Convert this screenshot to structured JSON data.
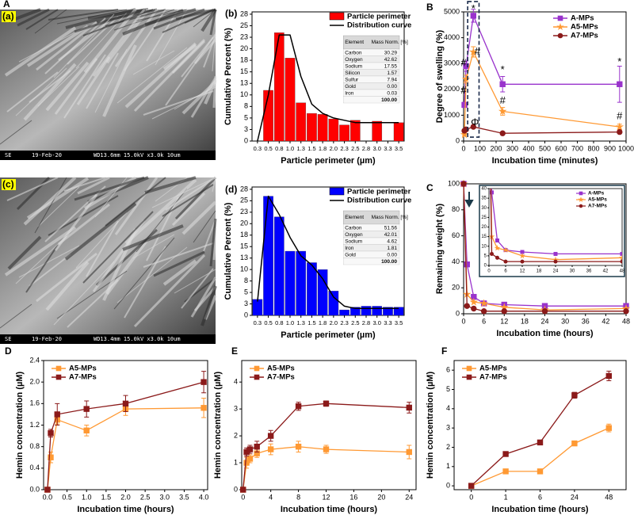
{
  "chart_data": [
    {
      "type": "image",
      "panel_label": "A",
      "label": "(a)",
      "footer": [
        "SE",
        "19-Feb-20",
        "WD13.6mm 15.0kV x3.0k 10um"
      ]
    },
    {
      "type": "bar",
      "panel_label": "(b)",
      "xlabel": "Particle perimeter (µm)",
      "ylabel": "Cumulative Percent (%)",
      "categories": [
        "0.3",
        "0.5",
        "0.8",
        "1.0",
        "1.3",
        "1.5",
        "1.8",
        "2.0",
        "2.3",
        "2.5",
        "2.8",
        "3.0",
        "3.3",
        "3.5"
      ],
      "ylim": [
        0,
        28
      ],
      "yticks": [
        0,
        {
          "value": 2.5,
          "label": "3"
        },
        5,
        {
          "value": 7.5,
          "label": "8"
        },
        10,
        {
          "value": 12.5,
          "label": "13"
        },
        15,
        {
          "value": 17.5,
          "label": "18"
        },
        20,
        {
          "value": 22.5,
          "label": "23"
        },
        25,
        {
          "value": 27.5,
          "label": "28"
        }
      ],
      "legend": "upper right",
      "series": [
        {
          "name": "Particle perimeter",
          "kind": "bar",
          "color": "#ff0000",
          "values": [
            null,
            11,
            23.5,
            18,
            8.3,
            6,
            5.8,
            4.8,
            3.5,
            4.5,
            null,
            4.3,
            null,
            4
          ]
        },
        {
          "name": "Distribution curve",
          "kind": "line",
          "color": "#000000",
          "values": [
            0,
            10,
            23,
            23,
            14,
            8,
            6,
            5,
            4.5,
            4,
            4,
            4,
            4,
            4
          ]
        }
      ],
      "table": {
        "header": [
          "Element",
          "Mass Norm. [%]"
        ],
        "rows": [
          [
            "Carbon",
            "30.29"
          ],
          [
            "Oxygen",
            "42.62"
          ],
          [
            "Sodium",
            "17.55"
          ],
          [
            "Silicon",
            "1.57"
          ],
          [
            "Sulfur",
            "7.94"
          ],
          [
            "Gold",
            "0.00"
          ],
          [
            "Iron",
            "0.03"
          ]
        ],
        "total": "100.00"
      }
    },
    {
      "type": "line",
      "panel_label": "B",
      "xlabel": "Incubation time (minutes)",
      "ylabel": "Degree of swelling (%)",
      "x": [
        5,
        15,
        60,
        240,
        960
      ],
      "xlim": [
        0,
        1000
      ],
      "xticks": [
        0,
        100,
        200,
        300,
        400,
        500,
        600,
        700,
        800,
        900,
        1000
      ],
      "ylim": [
        0,
        5000
      ],
      "yticks": [
        0,
        1000,
        2000,
        3000,
        4000,
        5000
      ],
      "legend": "upper right",
      "series": [
        {
          "name": "A-MPs",
          "color": "#9933cc",
          "marker": "square",
          "values": [
            1400,
            2900,
            4850,
            2200,
            2200
          ],
          "errors": [
            100,
            200,
            250,
            300,
            700
          ]
        },
        {
          "name": "A5-MPs",
          "color": "#ff9933",
          "marker": "star",
          "values": [
            250,
            2400,
            3450,
            1150,
            550
          ],
          "errors": [
            50,
            150,
            200,
            150,
            100
          ]
        },
        {
          "name": "A7-MPs",
          "color": "#8b1a1a",
          "marker": "circle",
          "values": [
            400,
            450,
            550,
            300,
            350
          ],
          "errors": [
            50,
            50,
            50,
            50,
            50
          ]
        }
      ],
      "annotations": [
        "#",
        "#",
        "*",
        "#",
        "Φ",
        "*",
        "#",
        "*",
        "#"
      ]
    },
    {
      "type": "image",
      "label": "(c)",
      "footer": [
        "SE",
        "19-Feb-20",
        "WD13.4mm 15.0kV x3.0k 10um"
      ]
    },
    {
      "type": "bar",
      "panel_label": "(d)",
      "xlabel": "Particle perimeter (µm)",
      "ylabel": "Cumulative Percent (%)",
      "categories": [
        "0.3",
        "0.5",
        "0.8",
        "1.0",
        "1.3",
        "1.5",
        "1.8",
        "2.0",
        "2.3",
        "2.5",
        "2.8",
        "3.0",
        "3.3",
        "3.5"
      ],
      "ylim": [
        0,
        28
      ],
      "yticks": [
        0,
        {
          "value": 2.5,
          "label": "3"
        },
        5,
        {
          "value": 7.5,
          "label": "8"
        },
        10,
        {
          "value": 12.5,
          "label": "13"
        },
        15,
        {
          "value": 17.5,
          "label": "18"
        },
        20,
        {
          "value": 22.5,
          "label": "23"
        },
        25,
        {
          "value": 27.5,
          "label": "28"
        }
      ],
      "legend": "upper right",
      "series": [
        {
          "name": "Particle perimeter",
          "kind": "bar",
          "color": "#0000ff",
          "values": [
            3.5,
            26,
            21.5,
            14,
            14,
            11.5,
            10,
            5.3,
            1.2,
            1.8,
            2,
            2,
            1.8,
            1.8
          ]
        },
        {
          "name": "Distribution curve",
          "kind": "line",
          "color": "#000000",
          "values": [
            3,
            26,
            22,
            17,
            13,
            11,
            8,
            4,
            2,
            1.5,
            1.5,
            1.5,
            1.5,
            1.5
          ]
        }
      ],
      "table": {
        "header": [
          "Element",
          "Mass Norm. [%]"
        ],
        "rows": [
          [
            "Carbon",
            "51.56"
          ],
          [
            "Oxygen",
            "42.01"
          ],
          [
            "Sodium",
            "4.62"
          ],
          [
            "Iron",
            "1.81"
          ],
          [
            "Gold",
            "0.00"
          ]
        ],
        "total": "100.00"
      }
    },
    {
      "type": "line",
      "panel_label": "C",
      "xlabel": "Incubation time (hours)",
      "ylabel": "Remaining weight (%)",
      "x": [
        0,
        1,
        3,
        6,
        12,
        24,
        48
      ],
      "xlim": [
        0,
        48
      ],
      "xticks": [
        0,
        6,
        12,
        18,
        24,
        30,
        36,
        42,
        48
      ],
      "ylim": [
        0,
        100
      ],
      "yticks": [
        0,
        20,
        40,
        60,
        80,
        100
      ],
      "legend": "upper right",
      "series": [
        {
          "name": "A-MPs",
          "color": "#9933cc",
          "marker": "square",
          "values": [
            100,
            38,
            13,
            8,
            7,
            6,
            6
          ]
        },
        {
          "name": "A5-MPs",
          "color": "#ff9933",
          "marker": "star",
          "values": [
            100,
            15,
            9,
            8,
            5,
            3,
            4
          ]
        },
        {
          "name": "A7-MPs",
          "color": "#8b1a1a",
          "marker": "circle",
          "values": [
            100,
            6,
            4,
            2,
            2,
            2,
            2
          ]
        }
      ],
      "inset": {
        "xlim": [
          0,
          48
        ],
        "xticks": [
          0,
          6,
          12,
          18,
          24,
          30,
          36,
          42,
          48
        ],
        "ylim": [
          0,
          40
        ],
        "yticks": [
          0,
          5,
          10,
          15,
          20,
          25,
          30,
          35,
          40
        ]
      }
    },
    {
      "type": "line",
      "panel_label": "D",
      "xlabel": "Incubation time (hours)",
      "ylabel": "Hemin concentration (µM)",
      "x": [
        0,
        0.083,
        0.25,
        1,
        2,
        4
      ],
      "xlim": [
        -0.1,
        4.1
      ],
      "xticks": [
        {
          "value": 0,
          "label": "0.0"
        },
        0.5,
        {
          "value": 1,
          "label": "1.0"
        },
        1.5,
        {
          "value": 2,
          "label": "2.0"
        },
        2.5,
        {
          "value": 3,
          "label": "3.0"
        },
        3.5,
        {
          "value": 4,
          "label": "4.0"
        }
      ],
      "ylim": [
        0,
        2.4
      ],
      "yticks": [
        {
          "value": 0,
          "label": "0.0"
        },
        0.4,
        0.8,
        1.2,
        1.6,
        {
          "value": 2,
          "label": "2.0"
        },
        2.4
      ],
      "legend": "upper left",
      "series": [
        {
          "name": "A5-MPs",
          "color": "#ff9933",
          "marker": "square",
          "values": [
            0,
            0.6,
            1.3,
            1.1,
            1.5,
            1.52
          ],
          "errors": [
            0,
            0.1,
            0.08,
            0.1,
            0.12,
            0.18
          ]
        },
        {
          "name": "A7-MPs",
          "color": "#8b1a1a",
          "marker": "square",
          "values": [
            0,
            1.05,
            1.4,
            1.5,
            1.6,
            2.0
          ],
          "errors": [
            0,
            0.07,
            0.2,
            0.15,
            0.15,
            0.2
          ]
        }
      ]
    },
    {
      "type": "line",
      "panel_label": "E",
      "xlabel": "Incubation time (hours)",
      "ylabel": "Hemin concentration (µM)",
      "x": [
        0,
        0.5,
        1,
        2,
        4,
        8,
        12,
        24
      ],
      "xlim": [
        -0.2,
        25
      ],
      "xticks": [
        0,
        4,
        8,
        12,
        16,
        20,
        24
      ],
      "ylim": [
        0,
        4.8
      ],
      "yticks": [
        0,
        1,
        2,
        3,
        4
      ],
      "legend": "upper left",
      "series": [
        {
          "name": "A5-MPs",
          "color": "#ff9933",
          "marker": "square",
          "values": [
            0,
            1.0,
            1.15,
            1.35,
            1.5,
            1.6,
            1.5,
            1.4
          ],
          "errors": [
            0,
            0.2,
            0.15,
            0.15,
            0.2,
            0.2,
            0.15,
            0.25
          ]
        },
        {
          "name": "A7-MPs",
          "color": "#8b1a1a",
          "marker": "square",
          "values": [
            0,
            1.4,
            1.5,
            1.6,
            2.0,
            3.1,
            3.2,
            3.05
          ],
          "errors": [
            0,
            0.15,
            0.15,
            0.2,
            0.2,
            0.15,
            0.1,
            0.2
          ]
        }
      ]
    },
    {
      "type": "line",
      "panel_label": "F",
      "xlabel": "Incubation time (hours)",
      "ylabel": "Hemin concentration (µM)",
      "categories": [
        "0",
        "1",
        "6",
        "24",
        "48"
      ],
      "ylim": [
        -0.2,
        6.5
      ],
      "yticks": [
        0,
        1,
        2,
        3,
        4,
        5,
        6
      ],
      "legend": "upper left",
      "series": [
        {
          "name": "A5-MPs",
          "color": "#ff9933",
          "marker": "square",
          "values": [
            0,
            0.75,
            0.75,
            2.2,
            3.0
          ],
          "errors": [
            0,
            0.05,
            0.05,
            0.1,
            0.2
          ]
        },
        {
          "name": "A7-MPs",
          "color": "#8b1a1a",
          "marker": "square",
          "values": [
            0,
            1.65,
            2.25,
            4.7,
            5.7
          ],
          "errors": [
            0,
            0.08,
            0.12,
            0.15,
            0.25
          ]
        }
      ]
    }
  ]
}
